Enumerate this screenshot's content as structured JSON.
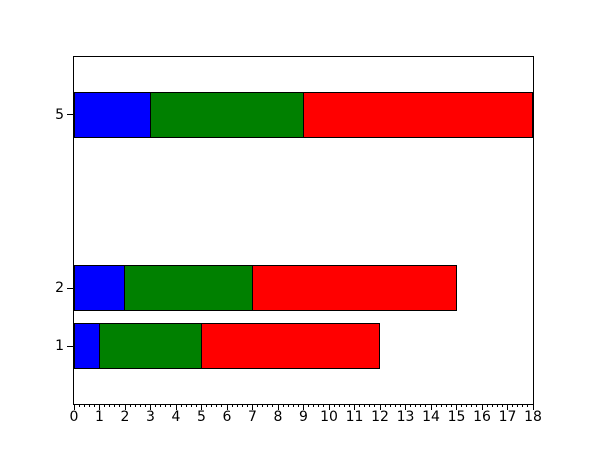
{
  "figure": {
    "background": "#ffffff",
    "title": ""
  },
  "chart_data": {
    "type": "bar",
    "orientation": "horizontal",
    "stacked": true,
    "title": "",
    "xlabel": "",
    "ylabel": "",
    "grid": false,
    "legend": null,
    "categories": [
      1,
      2,
      5
    ],
    "series": [
      {
        "name": "blue",
        "color": "#0000ff",
        "values": [
          1,
          2,
          3
        ]
      },
      {
        "name": "green",
        "color": "#008000",
        "values": [
          4,
          5,
          6
        ]
      },
      {
        "name": "red",
        "color": "#ff0000",
        "values": [
          7,
          8,
          9
        ]
      }
    ],
    "bar_totals": [
      12,
      15,
      18
    ],
    "bar_edge_color": "#000000",
    "bar_height": 0.8,
    "xlim": [
      0,
      18
    ],
    "ylim": [
      0,
      6
    ],
    "x_major_tick_values": [
      0,
      1,
      2,
      3,
      4,
      5,
      6,
      7,
      8,
      9,
      10,
      11,
      12,
      13,
      14,
      15,
      16,
      17,
      18
    ],
    "x_tick_labels": [
      "0",
      "1",
      "2",
      "3",
      "4",
      "5",
      "6",
      "7",
      "8",
      "9",
      "10",
      "11",
      "12",
      "13",
      "14",
      "15",
      "16",
      "17",
      "18"
    ],
    "x_minor_step": 0.2,
    "y_tick_values": [
      1,
      2,
      5
    ],
    "y_tick_labels": [
      "1",
      "2",
      "5"
    ]
  }
}
